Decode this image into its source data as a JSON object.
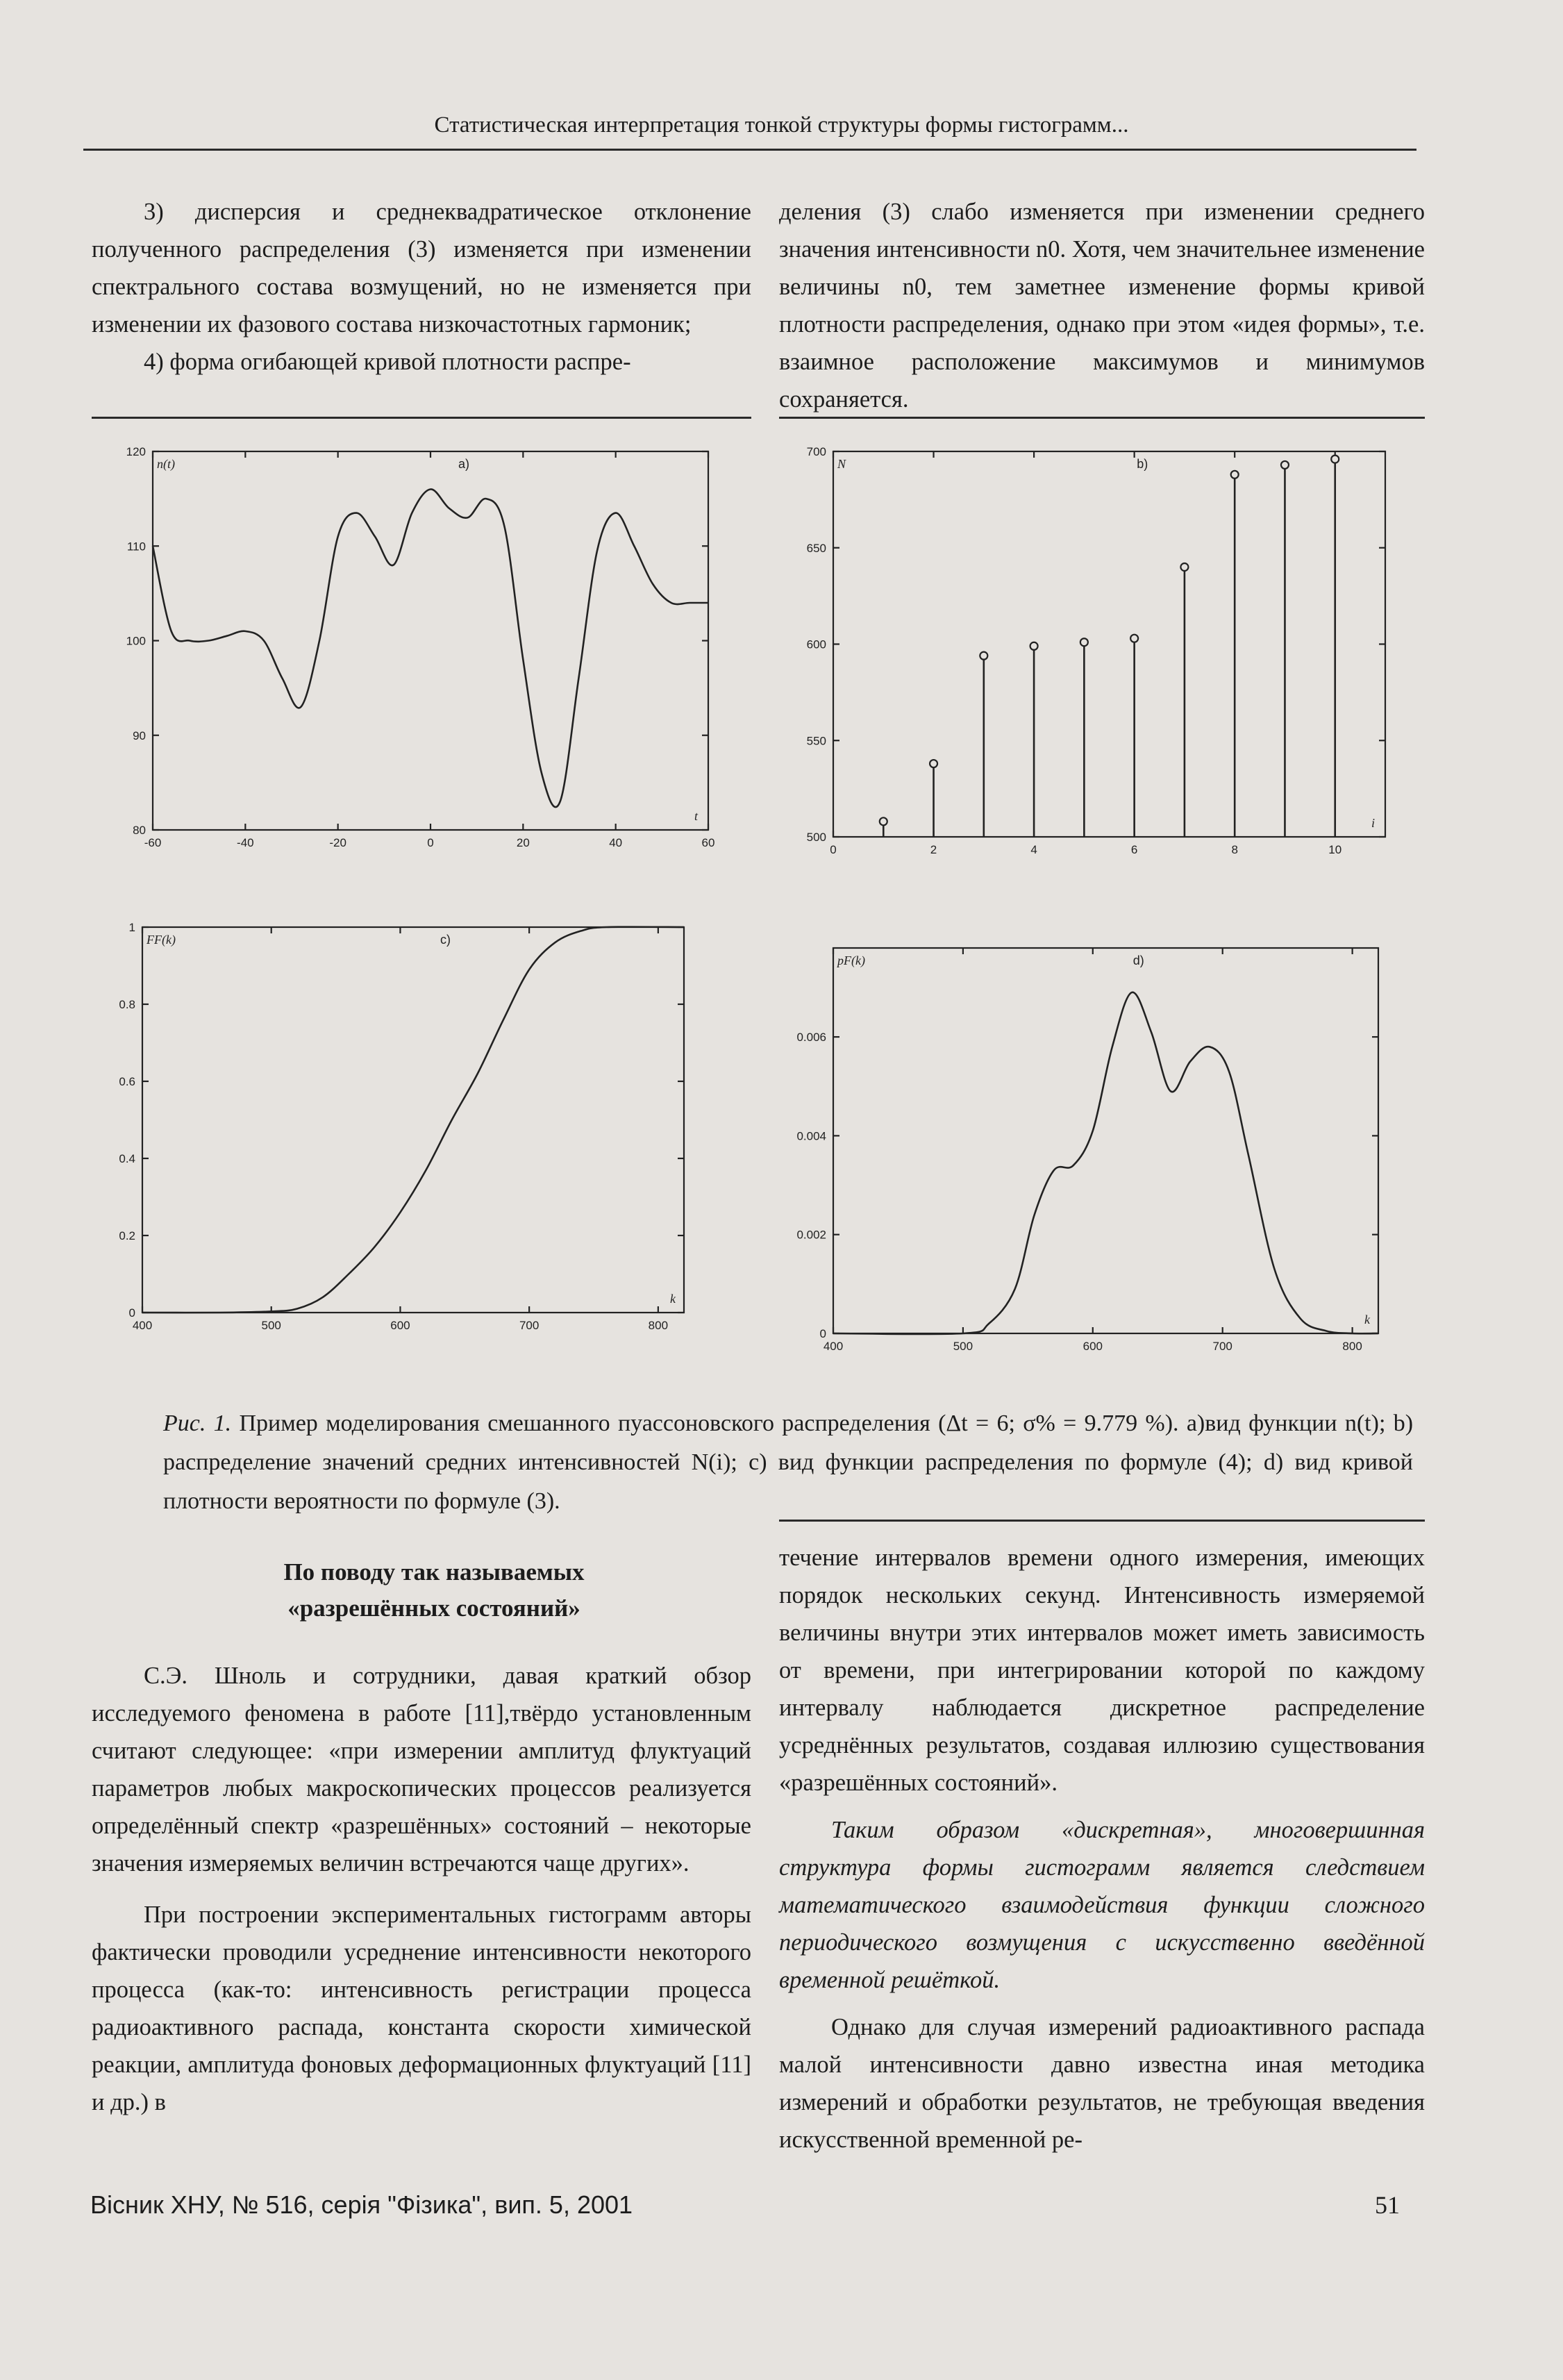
{
  "header": {
    "running_title": "Статистическая интерпретация тонкой структуры формы гистограмм..."
  },
  "top_left": {
    "p1": "3) дисперсия и среднеквадратическое отклонение полученного распределения (3) изменяется при изменении спектрального состава возмущений, но не изменяется при изменении их фазового состава низкочастотных гармоник;",
    "p2": "4) форма огибающей кривой плотности распре-"
  },
  "top_right": {
    "p1": "деления (3) слабо изменяется при изменении среднего значения интенсивности n0. Хотя, чем значительнее изменение величины n0, тем заметнее изменение формы кривой плотности распределения, однако при этом «идея формы», т.е. взаимное расположение максимумов и минимумов сохраняется."
  },
  "chart_data": [
    {
      "type": "line",
      "panel": "a)",
      "ylabel": "n(t)",
      "xlabel": "t",
      "xlim": [
        -60,
        60
      ],
      "ylim": [
        80,
        120
      ],
      "xticks": [
        -60,
        -40,
        -20,
        0,
        20,
        40,
        60
      ],
      "yticks": [
        80,
        90,
        100,
        110,
        120
      ],
      "x": [
        -60,
        -56,
        -52,
        -48,
        -44,
        -40,
        -36,
        -32,
        -28,
        -24,
        -20,
        -16,
        -12,
        -8,
        -4,
        0,
        4,
        8,
        12,
        16,
        20,
        24,
        28,
        32,
        36,
        40,
        44,
        48,
        52,
        56,
        60
      ],
      "y": [
        110,
        101,
        100,
        100,
        100.5,
        101,
        100,
        96,
        93,
        100,
        111,
        113.5,
        111,
        108,
        113.5,
        116,
        114,
        113,
        115,
        112,
        98,
        86,
        83,
        96,
        109.5,
        113.5,
        110,
        106,
        104,
        104,
        104
      ]
    },
    {
      "type": "stem",
      "panel": "b)",
      "ylabel": "N",
      "xlabel": "i",
      "xlim": [
        0,
        11
      ],
      "ylim": [
        500,
        700
      ],
      "xticks": [
        0,
        2,
        4,
        6,
        8,
        10
      ],
      "yticks": [
        500,
        550,
        600,
        650,
        700
      ],
      "x": [
        1,
        2,
        3,
        4,
        5,
        6,
        7,
        8,
        9,
        10
      ],
      "y": [
        508,
        538,
        594,
        599,
        601,
        603,
        640,
        688,
        693,
        696
      ]
    },
    {
      "type": "line",
      "panel": "c)",
      "ylabel": "FF(k)",
      "xlabel": "k",
      "xlim": [
        400,
        820
      ],
      "ylim": [
        0,
        1
      ],
      "xticks": [
        400,
        500,
        600,
        700,
        800
      ],
      "yticks": [
        0,
        0.2,
        0.4,
        0.6,
        0.8,
        1
      ],
      "x": [
        400,
        460,
        500,
        520,
        540,
        560,
        580,
        600,
        620,
        640,
        660,
        680,
        700,
        720,
        740,
        760,
        820
      ],
      "y": [
        0,
        0,
        0.003,
        0.01,
        0.04,
        0.1,
        0.17,
        0.26,
        0.37,
        0.5,
        0.62,
        0.76,
        0.89,
        0.96,
        0.99,
        1,
        1
      ]
    },
    {
      "type": "line",
      "panel": "d)",
      "ylabel": "pF(k)",
      "xlabel": "k",
      "xlim": [
        400,
        820
      ],
      "ylim": [
        0,
        0.0078
      ],
      "xticks": [
        400,
        500,
        600,
        700,
        800
      ],
      "yticks": [
        0,
        0.002,
        0.004,
        0.006
      ],
      "x": [
        400,
        500,
        520,
        540,
        555,
        570,
        585,
        600,
        615,
        630,
        645,
        660,
        675,
        690,
        705,
        720,
        740,
        760,
        780,
        800,
        820
      ],
      "y": [
        0,
        0,
        0.0002,
        0.0009,
        0.0024,
        0.0033,
        0.0034,
        0.0041,
        0.0058,
        0.0069,
        0.0061,
        0.0049,
        0.0055,
        0.0058,
        0.0053,
        0.0036,
        0.0013,
        0.0003,
        5e-05,
        0,
        0
      ]
    }
  ],
  "caption": {
    "lead": "Рис. 1.",
    "text": "Пример моделирования смешанного пуассоновского распределения (Δt = 6; σ% = 9.779 %). a)вид функции n(t); b) распределение значений средних интенсивностей N(i); c) вид функции распределения по формуле (4); d) вид кривой плотности вероятности по формуле (3)."
  },
  "section": {
    "title_line1": "По поводу так называемых",
    "title_line2": "«разрешённых состояний»"
  },
  "bottom_left": {
    "p1": "С.Э. Шноль и сотрудники, давая краткий обзор исследуемого феномена в работе [11],твёрдо установленным считают следующее: «при измерении амплитуд флуктуаций параметров любых макроскопических процессов реализуется определённый спектр «разрешённых» состояний – некоторые значения измеряемых величин встречаются чаще других».",
    "p2": "При построении экспериментальных гистограмм авторы фактически проводили усреднение интенсивности некоторого процесса (как-то: интенсивность регистрации процесса радиоактивного распада, константа скорости химической реакции, амплитуда фоновых деформационных флуктуаций [11] и др.) в"
  },
  "bottom_right": {
    "p1": "течение интервалов времени одного измерения, имеющих порядок нескольких секунд. Интенсивность измеряемой величины внутри этих интервалов может иметь зависимость от времени, при интегрировании которой по каждому интервалу наблюдается дискретное распределение усреднённых результатов, создавая иллюзию существования «разрешённых состояний».",
    "p2": "Таким образом «дискретная», многовершинная структура формы гистограмм является следствием математического взаимодействия функции сложного периодического возмущения с искусственно введённой временной решёткой.",
    "p3": "Однако для случая измерений радиоактивного распада малой интенсивности давно известна иная методика измерений и обработки результатов, не требующая введения искусственной временной ре-"
  },
  "footer": {
    "journal": "Вісник ХНУ, № 516, серія \"Фізика\", вип. 5, 2001",
    "page_number": "51"
  }
}
